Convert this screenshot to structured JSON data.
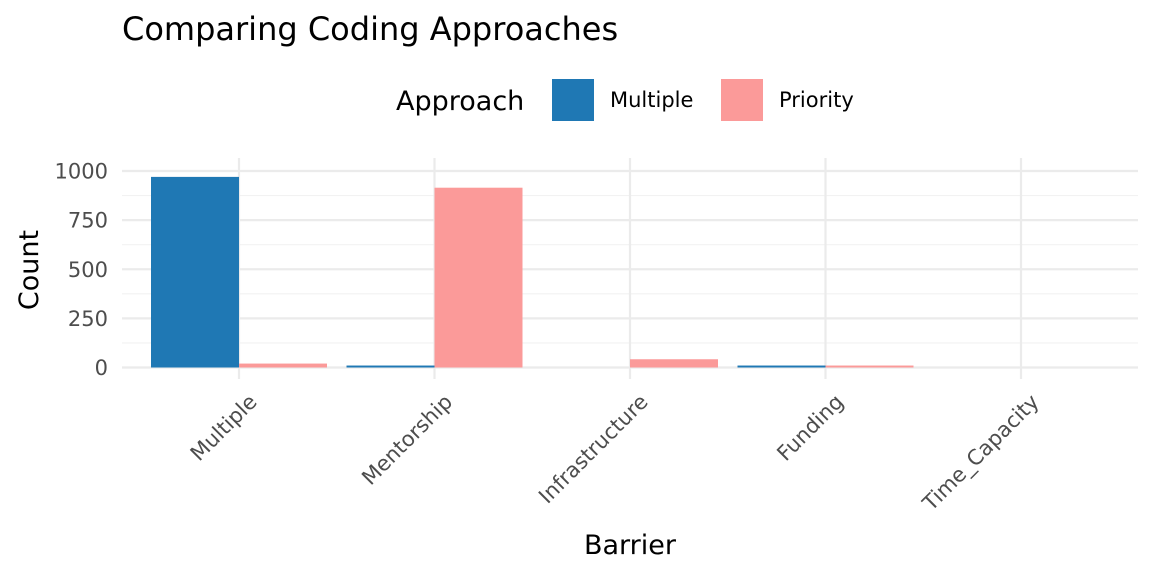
{
  "chart_data": {
    "type": "bar",
    "title": "Comparing Coding Approaches",
    "xlabel": "Barrier",
    "ylabel": "Count",
    "categories": [
      "Multiple",
      "Mentorship",
      "Infrastructure",
      "Funding",
      "Time_Capacity"
    ],
    "series": [
      {
        "name": "Multiple",
        "values": [
          970,
          10,
          0,
          10,
          0
        ],
        "color": "#1f78b4"
      },
      {
        "name": "Priority",
        "values": [
          20,
          915,
          42,
          10,
          0
        ],
        "color": "#fb9a99"
      }
    ],
    "ylim": [
      0,
      1000
    ],
    "yticks": [
      0,
      250,
      500,
      750,
      1000
    ],
    "legend": {
      "title": "Approach",
      "position": "top"
    },
    "grid": true
  }
}
